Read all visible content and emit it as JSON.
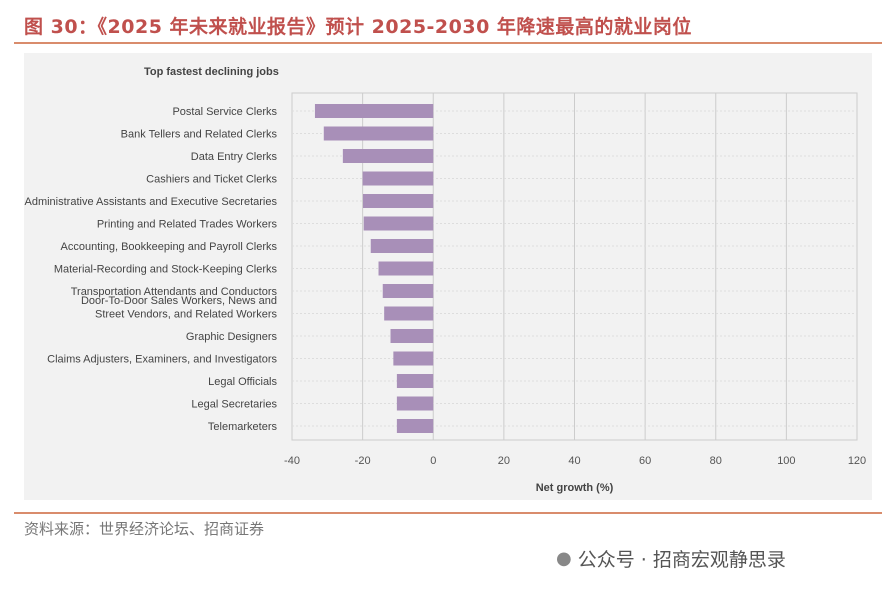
{
  "header": {
    "title": "图 30：《2025 年未来就业报告》预计 2025-2030 年降速最高的就业岗位"
  },
  "footer": {
    "source": "资料来源：世界经济论坛、招商证券",
    "watermark": "公众号 · 招商宏观静思录"
  },
  "chart_data": {
    "type": "bar",
    "orientation": "horizontal",
    "title": "Top fastest declining jobs",
    "xlabel": "Net growth (%)",
    "ylabel": "",
    "xlim": [
      -40,
      120
    ],
    "xticks": [
      -40,
      -20,
      0,
      20,
      40,
      60,
      80,
      100,
      120
    ],
    "categories": [
      "Postal Service Clerks",
      "Bank Tellers and Related Clerks",
      "Data Entry Clerks",
      "Cashiers and Ticket Clerks",
      "Administrative Assistants and Executive Secretaries",
      "Printing and Related Trades Workers",
      "Accounting, Bookkeeping and Payroll Clerks",
      "Material-Recording and Stock-Keeping Clerks",
      "Transportation Attendants and Conductors",
      "Door-To-Door Sales Workers, News and\nStreet Vendors, and Related Workers",
      "Graphic Designers",
      "Claims Adjusters, Examiners, and Investigators",
      "Legal Officials",
      "Legal Secretaries",
      "Telemarketers"
    ],
    "values": [
      -33.5,
      -31,
      -25.6,
      -20,
      -19.9,
      -19.7,
      -17.7,
      -15.5,
      -14.3,
      -13.9,
      -12.1,
      -11.3,
      -10.3,
      -10.3,
      -10.3
    ],
    "color": "#a88fb8",
    "grid": true
  }
}
